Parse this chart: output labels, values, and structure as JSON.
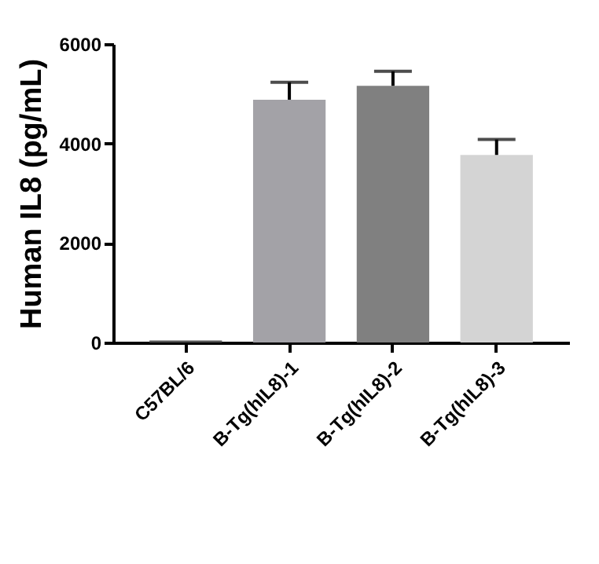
{
  "chart_data": {
    "type": "bar",
    "ylabel": "Human IL8 (pg/mL)",
    "categories": [
      "C57BL/6",
      "B-Tg(hIL8)-1",
      "B-Tg(hIL8)-2",
      "B-Tg(hIL8)-3"
    ],
    "values": [
      40,
      4880,
      5160,
      3770
    ],
    "colors": [
      "#555555",
      "#a3a2a7",
      "#808080",
      "#d4d4d4"
    ],
    "errors": [
      null,
      [
        4880,
        5230
      ],
      [
        5160,
        5450
      ],
      [
        3770,
        4080
      ]
    ],
    "ylim": [
      0,
      6000
    ],
    "yticks": [
      0,
      2000,
      4000,
      6000
    ],
    "grid": false
  }
}
